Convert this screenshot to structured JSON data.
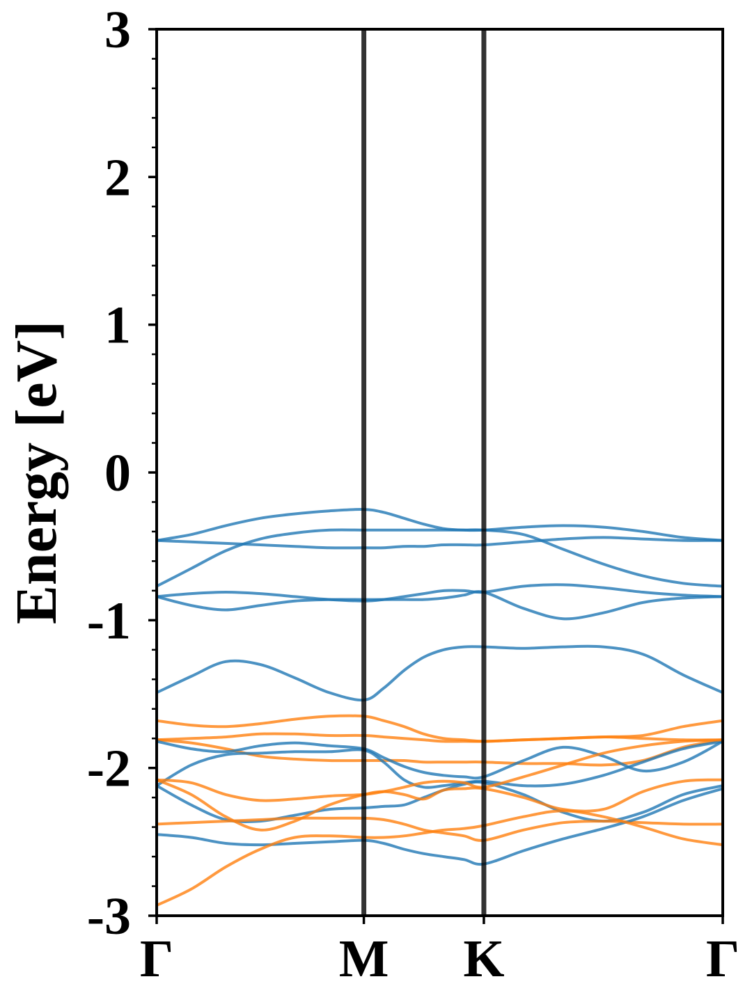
{
  "chart_data": {
    "type": "line",
    "title": "",
    "ylabel": "Energy [eV]",
    "xlabel": "",
    "ylim": [
      -3,
      3
    ],
    "yticks": [
      -3,
      -2,
      -1,
      0,
      1,
      2,
      3
    ],
    "ytick_labels": [
      "-3",
      "-2",
      "-1",
      "0",
      "1",
      "2",
      "3"
    ],
    "y_minor_step": 0.2,
    "kpoints": [
      {
        "label": "Γ",
        "x": 0.0
      },
      {
        "label": "M",
        "x": 0.366
      },
      {
        "label": "K",
        "x": 0.578
      },
      {
        "label": "Γ",
        "x": 1.0
      }
    ],
    "x": [
      0.0,
      0.061,
      0.122,
      0.183,
      0.244,
      0.305,
      0.366,
      0.401,
      0.437,
      0.472,
      0.507,
      0.543,
      0.578,
      0.648,
      0.718,
      0.789,
      0.859,
      0.93,
      1.0
    ],
    "grid": false,
    "legend": "none",
    "series": [
      {
        "color": "#1f77b4",
        "values": [
          -0.46,
          -0.42,
          -0.36,
          -0.31,
          -0.28,
          -0.26,
          -0.25,
          -0.27,
          -0.31,
          -0.35,
          -0.38,
          -0.39,
          -0.39,
          -0.37,
          -0.36,
          -0.37,
          -0.4,
          -0.44,
          -0.46
        ]
      },
      {
        "color": "#1f77b4",
        "values": [
          -0.46,
          -0.47,
          -0.48,
          -0.49,
          -0.5,
          -0.51,
          -0.51,
          -0.51,
          -0.5,
          -0.5,
          -0.49,
          -0.49,
          -0.49,
          -0.47,
          -0.45,
          -0.44,
          -0.45,
          -0.46,
          -0.46
        ]
      },
      {
        "color": "#1f77b4",
        "values": [
          -0.77,
          -0.65,
          -0.53,
          -0.45,
          -0.41,
          -0.39,
          -0.39,
          -0.39,
          -0.39,
          -0.39,
          -0.39,
          -0.39,
          -0.39,
          -0.42,
          -0.52,
          -0.62,
          -0.7,
          -0.75,
          -0.77
        ]
      },
      {
        "color": "#1f77b4",
        "values": [
          -0.84,
          -0.82,
          -0.81,
          -0.82,
          -0.84,
          -0.86,
          -0.87,
          -0.86,
          -0.84,
          -0.82,
          -0.8,
          -0.8,
          -0.81,
          -0.77,
          -0.76,
          -0.78,
          -0.81,
          -0.83,
          -0.84
        ]
      },
      {
        "color": "#1f77b4",
        "values": [
          -0.84,
          -0.9,
          -0.93,
          -0.9,
          -0.87,
          -0.86,
          -0.86,
          -0.86,
          -0.86,
          -0.86,
          -0.85,
          -0.83,
          -0.81,
          -0.92,
          -0.99,
          -0.95,
          -0.88,
          -0.85,
          -0.84
        ]
      },
      {
        "color": "#1f77b4",
        "values": [
          -1.49,
          -1.38,
          -1.28,
          -1.3,
          -1.39,
          -1.49,
          -1.54,
          -1.46,
          -1.34,
          -1.25,
          -1.2,
          -1.18,
          -1.18,
          -1.19,
          -1.18,
          -1.18,
          -1.23,
          -1.37,
          -1.49
        ]
      },
      {
        "color": "#ff7f0e",
        "values": [
          -1.68,
          -1.71,
          -1.72,
          -1.7,
          -1.67,
          -1.65,
          -1.65,
          -1.68,
          -1.72,
          -1.77,
          -1.8,
          -1.81,
          -1.82,
          -1.81,
          -1.8,
          -1.79,
          -1.78,
          -1.72,
          -1.68
        ]
      },
      {
        "color": "#ff7f0e",
        "values": [
          -1.81,
          -1.8,
          -1.79,
          -1.77,
          -1.77,
          -1.78,
          -1.78,
          -1.79,
          -1.8,
          -1.81,
          -1.82,
          -1.82,
          -1.82,
          -1.81,
          -1.8,
          -1.79,
          -1.8,
          -1.81,
          -1.81
        ]
      },
      {
        "color": "#ff7f0e",
        "values": [
          -1.81,
          -1.83,
          -1.87,
          -1.92,
          -1.94,
          -1.95,
          -1.95,
          -1.95,
          -1.95,
          -1.96,
          -1.96,
          -1.96,
          -1.96,
          -1.97,
          -1.97,
          -1.98,
          -1.95,
          -1.86,
          -1.81
        ]
      },
      {
        "color": "#1f77b4",
        "values": [
          -1.82,
          -1.87,
          -1.89,
          -1.85,
          -1.83,
          -1.85,
          -1.87,
          -1.93,
          -1.99,
          -2.03,
          -2.05,
          -2.06,
          -2.06,
          -1.95,
          -1.86,
          -1.92,
          -2.02,
          -1.96,
          -1.82
        ]
      },
      {
        "color": "#1f77b4",
        "values": [
          -2.12,
          -1.98,
          -1.91,
          -1.9,
          -1.89,
          -1.89,
          -1.88,
          -1.96,
          -2.08,
          -2.13,
          -2.12,
          -2.1,
          -2.09,
          -2.12,
          -2.11,
          -2.05,
          -1.96,
          -1.87,
          -1.82
        ]
      },
      {
        "color": "#1f77b4",
        "values": [
          -2.12,
          -2.25,
          -2.35,
          -2.36,
          -2.32,
          -2.28,
          -2.27,
          -2.26,
          -2.25,
          -2.2,
          -2.15,
          -2.11,
          -2.1,
          -2.18,
          -2.3,
          -2.36,
          -2.3,
          -2.18,
          -2.12
        ]
      },
      {
        "color": "#ff7f0e",
        "values": [
          -2.08,
          -2.1,
          -2.18,
          -2.22,
          -2.21,
          -2.19,
          -2.18,
          -2.16,
          -2.13,
          -2.1,
          -2.09,
          -2.1,
          -2.13,
          -2.06,
          -1.98,
          -1.9,
          -1.85,
          -1.82,
          -1.81
        ]
      },
      {
        "color": "#ff7f0e",
        "values": [
          -2.08,
          -2.18,
          -2.33,
          -2.42,
          -2.36,
          -2.25,
          -2.18,
          -2.16,
          -2.18,
          -2.21,
          -2.15,
          -2.14,
          -2.14,
          -2.2,
          -2.28,
          -2.28,
          -2.16,
          -2.09,
          -2.08
        ]
      },
      {
        "color": "#ff7f0e",
        "values": [
          -2.38,
          -2.37,
          -2.36,
          -2.35,
          -2.34,
          -2.34,
          -2.34,
          -2.35,
          -2.38,
          -2.42,
          -2.44,
          -2.46,
          -2.49,
          -2.42,
          -2.37,
          -2.36,
          -2.37,
          -2.38,
          -2.38
        ]
      },
      {
        "color": "#1f77b4",
        "values": [
          -2.45,
          -2.47,
          -2.51,
          -2.52,
          -2.51,
          -2.5,
          -2.49,
          -2.51,
          -2.55,
          -2.58,
          -2.6,
          -2.62,
          -2.65,
          -2.56,
          -2.48,
          -2.41,
          -2.33,
          -2.22,
          -2.14
        ]
      },
      {
        "color": "#ff7f0e",
        "values": [
          -2.93,
          -2.82,
          -2.67,
          -2.55,
          -2.47,
          -2.46,
          -2.47,
          -2.47,
          -2.46,
          -2.44,
          -2.42,
          -2.41,
          -2.39,
          -2.33,
          -2.29,
          -2.33,
          -2.4,
          -2.48,
          -2.52
        ]
      }
    ]
  }
}
